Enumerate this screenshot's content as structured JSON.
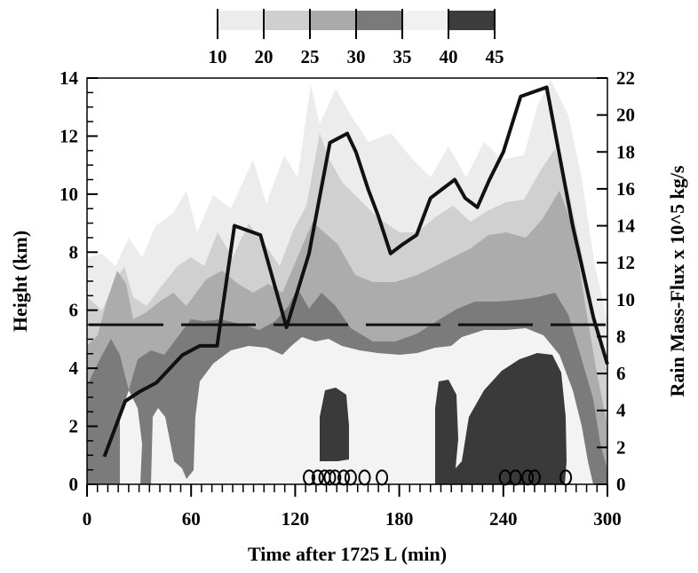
{
  "chart_data": {
    "type": "area",
    "title": "",
    "xlabel": "Time after 1725 L (min)",
    "ylabel": "Height (km)",
    "y2label": "Rain Mass-Flux x 10^5 kg/s",
    "xlim": [
      0,
      300
    ],
    "ylim": [
      0,
      14
    ],
    "y2lim": [
      0,
      22
    ],
    "x_ticks": [
      0,
      60,
      120,
      180,
      240,
      300
    ],
    "y_ticks": [
      0,
      2,
      4,
      6,
      8,
      10,
      12,
      14
    ],
    "y2_ticks": [
      0,
      2,
      4,
      6,
      8,
      10,
      12,
      14,
      16,
      18,
      20,
      22
    ],
    "colorbar": {
      "labels": [
        "10",
        "20",
        "25",
        "30",
        "35",
        "40",
        "45"
      ],
      "colors": [
        "#ececec",
        "#cfcfcf",
        "#aaaaaa",
        "#7a7a7a",
        "#f1f1f1",
        "#3c3c3c"
      ]
    },
    "freezing_level_km": 5.5,
    "series": [
      {
        "values_axis": "y2",
        "x": [
          10,
          22,
          30,
          40,
          55,
          65,
          75,
          85,
          100,
          115,
          128,
          140,
          150,
          155,
          162,
          168,
          175,
          182,
          190,
          198,
          205,
          212,
          218,
          225,
          232,
          240,
          250,
          265,
          280,
          292,
          300
        ],
        "y": [
          1.5,
          4.5,
          5.0,
          5.5,
          7.0,
          7.5,
          7.5,
          14.0,
          13.5,
          8.5,
          12.5,
          18.5,
          19.0,
          18.0,
          16.0,
          14.5,
          12.5,
          13.0,
          13.5,
          15.5,
          16.0,
          16.5,
          15.5,
          15.0,
          16.5,
          18.0,
          21.0,
          21.5,
          14.0,
          9.0,
          6.5
        ]
      }
    ],
    "markers": {
      "symbol": "O",
      "y_km": 0.25,
      "x": [
        128,
        133,
        137,
        140,
        143,
        148,
        152,
        160,
        170,
        241,
        247,
        254,
        258,
        276
      ]
    }
  }
}
